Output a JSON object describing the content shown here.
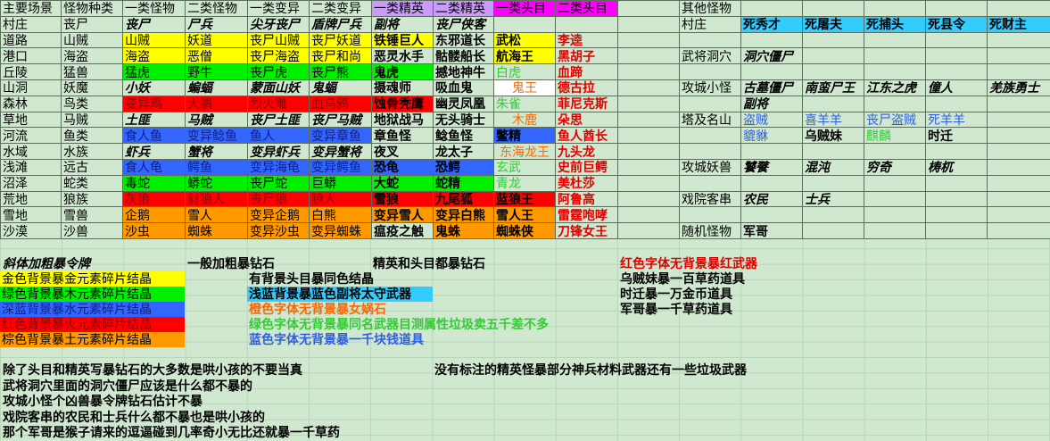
{
  "main_table": {
    "headers": [
      "主要场景",
      "怪物种类",
      "一类怪物",
      "二类怪物",
      "一类变异",
      "二类变异",
      "一类精英",
      "二类精英",
      "一类头目",
      "二类头目"
    ],
    "header_colors": {
      "一类精英": "#cc99ff",
      "二类精英": "#cc99ff",
      "一类头目": "#ff00ff",
      "二类头目": "#ff00ff"
    },
    "rows": [
      {
        "scene": "村庄",
        "kind": "丧尸",
        "cells": [
          {
            "t": "丧尸",
            "s": "bi"
          },
          {
            "t": "尸兵",
            "s": "bi"
          },
          {
            "t": "尖牙丧尸",
            "s": "bi"
          },
          {
            "t": "盾牌尸兵",
            "s": "bi"
          },
          {
            "t": "副将",
            "s": "bi"
          },
          {
            "t": "丧尸侠客",
            "s": "bi"
          },
          {
            "t": ""
          },
          {
            "t": ""
          }
        ]
      },
      {
        "scene": "道路",
        "kind": "山贼",
        "cells": [
          {
            "t": "山贼",
            "bg": "y"
          },
          {
            "t": "妖道",
            "bg": "y"
          },
          {
            "t": "丧尸山贼",
            "bg": "y"
          },
          {
            "t": "丧尸妖道",
            "bg": "y"
          },
          {
            "t": "铁锤巨人",
            "bg": "y",
            "s": "b"
          },
          {
            "t": "东邪道长",
            "s": "b"
          },
          {
            "t": "武松",
            "bg": "y",
            "s": "b"
          },
          {
            "t": "李逵",
            "s": "tr"
          }
        ]
      },
      {
        "scene": "港口",
        "kind": "海盗",
        "cells": [
          {
            "t": "海盗",
            "bg": "y"
          },
          {
            "t": "恶僧",
            "bg": "y"
          },
          {
            "t": "丧尸海盗",
            "bg": "y"
          },
          {
            "t": "丧尸和尚",
            "bg": "y"
          },
          {
            "t": "恶灵水手",
            "s": "b"
          },
          {
            "t": "骷髅船长",
            "s": "b"
          },
          {
            "t": "航海王",
            "bg": "y",
            "s": "b"
          },
          {
            "t": "黑胡子",
            "s": "tr"
          }
        ]
      },
      {
        "scene": "丘陵",
        "kind": "猛兽",
        "cells": [
          {
            "t": "猛虎",
            "bg": "g"
          },
          {
            "t": "野牛",
            "bg": "g"
          },
          {
            "t": "丧尸虎",
            "bg": "g"
          },
          {
            "t": "丧尸熊",
            "bg": "g"
          },
          {
            "t": "鬼虎",
            "bg": "g",
            "s": "b"
          },
          {
            "t": "撼地神牛",
            "s": "b"
          },
          {
            "t": "白虎",
            "s": "tg"
          },
          {
            "t": "血蹄",
            "s": "tr"
          }
        ]
      },
      {
        "scene": "山洞",
        "kind": "妖魔",
        "cells": [
          {
            "t": "小妖",
            "s": "bi"
          },
          {
            "t": "蝙蝠",
            "s": "bi"
          },
          {
            "t": "蒙面山妖",
            "s": "bi"
          },
          {
            "t": "鬼蝠",
            "s": "bi"
          },
          {
            "t": "摄魂师",
            "s": "b"
          },
          {
            "t": "吸血鬼",
            "s": "b"
          },
          {
            "t": "鬼王",
            "bg": "w",
            "s": "to"
          },
          {
            "t": "德古拉",
            "s": "tr"
          }
        ]
      },
      {
        "scene": "森林",
        "kind": "鸟类",
        "cells": [
          {
            "t": "变异鸡",
            "bg": "r"
          },
          {
            "t": "大鹏",
            "bg": "r"
          },
          {
            "t": "烈火雕",
            "bg": "r"
          },
          {
            "t": "血乌鸦",
            "bg": "r"
          },
          {
            "t": "蚀骨秃鹰",
            "bg": "r",
            "s": "b"
          },
          {
            "t": "幽灵凤凰",
            "s": "b"
          },
          {
            "t": "朱雀",
            "s": "tg"
          },
          {
            "t": "菲尼克斯",
            "s": "tr"
          }
        ]
      },
      {
        "scene": "草地",
        "kind": "马贼",
        "cells": [
          {
            "t": "土匪",
            "s": "bi"
          },
          {
            "t": "马贼",
            "s": "bi"
          },
          {
            "t": "丧尸土匪",
            "s": "bi"
          },
          {
            "t": "丧尸马贼",
            "s": "bi"
          },
          {
            "t": "地狱战马",
            "s": "b"
          },
          {
            "t": "无头骑士",
            "s": "b"
          },
          {
            "t": "木鹿",
            "s": "to"
          },
          {
            "t": "朵思",
            "s": "tr"
          }
        ]
      },
      {
        "scene": "河流",
        "kind": "鱼类",
        "cells": [
          {
            "t": "食人鱼",
            "bg": "bl"
          },
          {
            "t": "变异鲶鱼",
            "bg": "bl"
          },
          {
            "t": "鱼人",
            "bg": "bl"
          },
          {
            "t": "变异章鱼",
            "bg": "bl"
          },
          {
            "t": "章鱼怪",
            "s": "b"
          },
          {
            "t": "鲶鱼怪",
            "s": "b"
          },
          {
            "t": "鳖精",
            "bg": "bl",
            "s": "b"
          },
          {
            "t": "鱼人酋长",
            "s": "tr"
          }
        ]
      },
      {
        "scene": "水域",
        "kind": "水族",
        "cells": [
          {
            "t": "虾兵",
            "s": "bi"
          },
          {
            "t": "蟹将",
            "s": "bi"
          },
          {
            "t": "变异虾兵",
            "s": "bi"
          },
          {
            "t": "变异蟹将",
            "s": "bi"
          },
          {
            "t": "夜叉",
            "s": "b"
          },
          {
            "t": "龙太子",
            "s": "b"
          },
          {
            "t": "东海龙王",
            "s": "to"
          },
          {
            "t": "九头龙",
            "s": "tr"
          }
        ]
      },
      {
        "scene": "浅滩",
        "kind": "远古",
        "cells": [
          {
            "t": "食人龟",
            "bg": "bl"
          },
          {
            "t": "鳄鱼",
            "bg": "bl"
          },
          {
            "t": "变异海龟",
            "bg": "bl"
          },
          {
            "t": "变异鳄鱼",
            "bg": "bl"
          },
          {
            "t": "恐龟",
            "bg": "bl",
            "s": "b"
          },
          {
            "t": "恐鳄",
            "bg": "bl",
            "s": "b"
          },
          {
            "t": "玄武",
            "s": "tg"
          },
          {
            "t": "史前巨鳄",
            "s": "tr"
          }
        ]
      },
      {
        "scene": "沼泽",
        "kind": "蛇类",
        "cells": [
          {
            "t": "毒蛇",
            "bg": "g"
          },
          {
            "t": "蟒蛇",
            "bg": "g"
          },
          {
            "t": "丧尸蛇",
            "bg": "g"
          },
          {
            "t": "巨蟒",
            "bg": "g"
          },
          {
            "t": "大蛇",
            "bg": "g",
            "s": "b"
          },
          {
            "t": "蛇精",
            "bg": "g",
            "s": "b"
          },
          {
            "t": "青龙",
            "s": "tg"
          },
          {
            "t": "美杜莎",
            "s": "tr"
          }
        ]
      },
      {
        "scene": "荒地",
        "kind": "狼族",
        "cells": [
          {
            "t": "灰狼",
            "bg": "r"
          },
          {
            "t": "豺狼人",
            "bg": "r"
          },
          {
            "t": "丧尸狼",
            "bg": "r"
          },
          {
            "t": "狼人",
            "bg": "r"
          },
          {
            "t": "雪狼",
            "bg": "r",
            "s": "b"
          },
          {
            "t": "九尾狐",
            "bg": "r",
            "s": "b"
          },
          {
            "t": "蓝狼王",
            "bg": "r",
            "s": "b"
          },
          {
            "t": "阿鲁高",
            "s": "tr"
          }
        ]
      },
      {
        "scene": "雪地",
        "kind": "雪兽",
        "cells": [
          {
            "t": "企鹅",
            "bg": "o"
          },
          {
            "t": "雪人",
            "bg": "o"
          },
          {
            "t": "变异企鹅",
            "bg": "o"
          },
          {
            "t": "白熊",
            "bg": "o"
          },
          {
            "t": "变异雪人",
            "bg": "o",
            "s": "b"
          },
          {
            "t": "变异白熊",
            "bg": "o",
            "s": "b"
          },
          {
            "t": "雪人王",
            "bg": "o",
            "s": "b"
          },
          {
            "t": "雷霆咆哮",
            "s": "tr"
          }
        ]
      },
      {
        "scene": "沙漠",
        "kind": "沙兽",
        "cells": [
          {
            "t": "沙虫",
            "bg": "o"
          },
          {
            "t": "蜘蛛",
            "bg": "o"
          },
          {
            "t": "变异沙虫",
            "bg": "o"
          },
          {
            "t": "变异蜘蛛",
            "bg": "o"
          },
          {
            "t": "瘟疫之触",
            "s": "b"
          },
          {
            "t": "鬼蛛",
            "bg": "o",
            "s": "b"
          },
          {
            "t": "蜘蛛侠",
            "bg": "o",
            "s": "b"
          },
          {
            "t": "刀锋女王",
            "s": "tr"
          }
        ]
      }
    ]
  },
  "other_table": {
    "rows": [
      {
        "label": "其他怪物",
        "cells": []
      },
      {
        "label": "村庄",
        "cells": [
          {
            "t": "死秀才",
            "bg": "lb",
            "s": "b"
          },
          {
            "t": "死屠夫",
            "bg": "lb",
            "s": "b"
          },
          {
            "t": "死捕头",
            "bg": "lb",
            "s": "b"
          },
          {
            "t": "死县令",
            "bg": "lb",
            "s": "b"
          },
          {
            "t": "死财主",
            "bg": "lb",
            "s": "b"
          }
        ]
      },
      {
        "label": "",
        "cells": []
      },
      {
        "label": "武将洞穴",
        "cells": [
          {
            "t": "洞穴僵尸",
            "s": "bi"
          }
        ]
      },
      {
        "label": "",
        "cells": []
      },
      {
        "label": "攻城小怪",
        "cells": [
          {
            "t": "古墓僵尸",
            "s": "bi"
          },
          {
            "t": "南蛮尸王",
            "s": "bi"
          },
          {
            "t": "江东之虎",
            "s": "bi"
          },
          {
            "t": "僮人",
            "s": "bi"
          },
          {
            "t": "羌族勇士",
            "s": "bi"
          }
        ]
      },
      {
        "label": "",
        "cells": [
          {
            "t": "副将",
            "s": "bi"
          }
        ]
      },
      {
        "label": "塔及名山",
        "cells": [
          {
            "t": "盗贼",
            "s": "tb"
          },
          {
            "t": "喜羊羊",
            "s": "tb"
          },
          {
            "t": "丧尸盗贼",
            "s": "tb"
          },
          {
            "t": "死羊羊",
            "s": "tb"
          }
        ]
      },
      {
        "label": "",
        "cells": [
          {
            "t": "貔貅",
            "s": "tb"
          },
          {
            "t": "乌贼妹",
            "s": "tk"
          },
          {
            "t": "麒麟",
            "s": "tg"
          },
          {
            "t": "时迁",
            "s": "tk"
          }
        ]
      },
      {
        "label": "",
        "cells": []
      },
      {
        "label": "攻城妖兽",
        "cells": [
          {
            "t": "饕餮",
            "s": "bi"
          },
          {
            "t": "混沌",
            "s": "bi"
          },
          {
            "t": "穷奇",
            "s": "bi"
          },
          {
            "t": "梼杌",
            "s": "bi"
          }
        ]
      },
      {
        "label": "",
        "cells": []
      },
      {
        "label": "戏院客串",
        "cells": [
          {
            "t": "农民",
            "s": "bi"
          },
          {
            "t": "士兵",
            "s": "bi"
          }
        ]
      },
      {
        "label": "",
        "cells": []
      },
      {
        "label": "随机怪物",
        "cells": [
          {
            "t": "军哥",
            "s": "tk"
          }
        ]
      }
    ]
  },
  "legend": {
    "italic_bold": "斜体加粗暴令牌",
    "bold": "一般加粗暴钻石",
    "elite_boss": "精英和头目都暴钻石",
    "red_font": "红色字体无背景暴红武器",
    "gold_bg": "金色背景暴金元素碎片结晶",
    "green_bg": "绿色背景暴木元素碎片结晶",
    "blue_bg": "深蓝背景暴水元素碎片结晶",
    "red_bg": "红色背景暴火元素碎片结晶",
    "brown_bg": "棕色背景暴土元素碎片结晶",
    "boss_bg": "有背景头目暴同色结晶",
    "lightblue_bg": "浅蓝背景暴蓝色副将太守武器",
    "orange_font": "橙色字体无背景暴女娲石",
    "green_font": "绿色字体无背景暴同名武器目测属性垃圾卖五千差不多",
    "blue_font": "蓝色字体无背景暴一千块钱道具",
    "wuzeimei": "乌贼妹暴一百草药道具",
    "shiqian": "时迁暴一万金币道具",
    "junge": "军哥暴一千草药道具"
  },
  "notes": [
    "除了头目和精英写暴钻石的大多数是哄小孩的不要当真",
    "武将洞穴里面的洞穴僵尸应该是什么都不暴的",
    "攻城小怪个凶兽暴令牌钻石估计不暴",
    "戏院客串的农民和士兵什么都不暴也是哄小孩的",
    "那个军哥是猴子请来的逗逼碰到几率奇小无比还就暴一千草药"
  ],
  "note_right": "没有标注的精英怪暴部分神兵材料武器还有一些垃圾武器",
  "colors": {
    "gold": "#ffff00",
    "green": "#00f000",
    "deep_blue": "#3366ff",
    "red": "#ff0000",
    "brown": "#ff9900",
    "light_blue": "#33ccff",
    "sheet_bg": "#cfe8cf"
  }
}
